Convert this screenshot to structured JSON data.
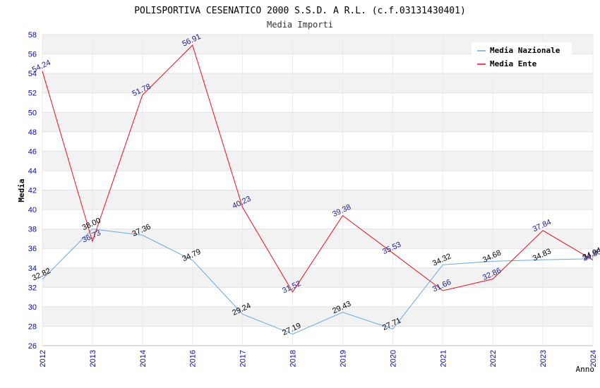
{
  "chart_data": {
    "type": "line",
    "title": "POLISPORTIVA CESENATICO 2000 S.S.D. A R.L. (c.f.03131430401)",
    "subtitle": "Media Importi",
    "xlabel": "Anno",
    "ylabel": "Media",
    "categories": [
      "2012",
      "2013",
      "2014",
      "2016",
      "2017",
      "2018",
      "2019",
      "2020",
      "2021",
      "2022",
      "2023",
      "2024"
    ],
    "ylim": [
      26,
      58
    ],
    "ytick_step": 2,
    "grid": true,
    "legend_position": "top-right",
    "series": [
      {
        "name": "Media Nazionale",
        "color": "#6aa8e0",
        "label_color": "#000000",
        "values": [
          32.82,
          38.0,
          37.36,
          34.79,
          29.24,
          27.19,
          29.43,
          27.71,
          34.32,
          34.68,
          34.83,
          34.94
        ],
        "labels": [
          "32.82",
          "38.00",
          "37.36",
          "34.79",
          "29.24",
          "27.19",
          "29.43",
          "27.71",
          "34.32",
          "34.68",
          "34.83",
          "34.94"
        ]
      },
      {
        "name": "Media Ente",
        "color": "#e8101e",
        "label_color": "#1c1c8c",
        "values": [
          54.24,
          36.73,
          51.78,
          56.91,
          40.23,
          31.52,
          39.38,
          35.53,
          31.66,
          32.86,
          37.84,
          34.8
        ],
        "labels": [
          "54.24",
          "36.73",
          "51.78",
          "56.91",
          "40.23",
          "31.52",
          "39.38",
          "35.53",
          "31.66",
          "32.86",
          "37.84",
          "34.80"
        ]
      }
    ]
  }
}
